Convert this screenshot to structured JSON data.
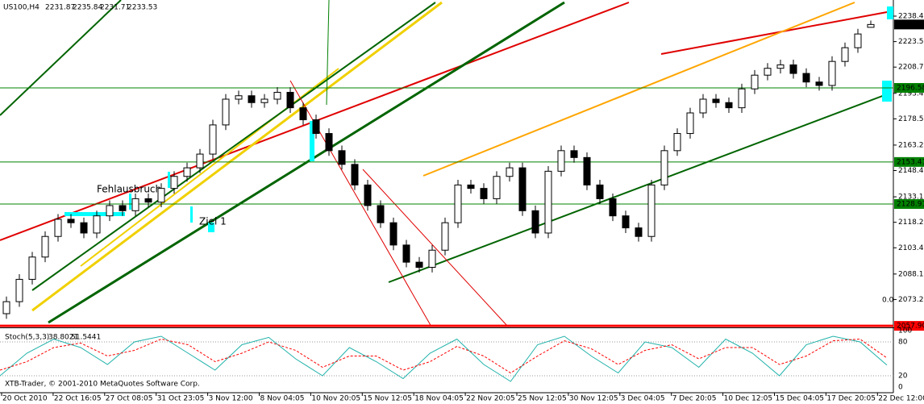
{
  "chart_data": {
    "type": "candlestick",
    "symbol": "US100,H4",
    "quote": [
      2231.87,
      2235.84,
      2231.71,
      2233.53
    ],
    "ylim": [
      2057,
      2247.8
    ],
    "yticks": [
      {
        "value": 2238.4,
        "label": "2238.40"
      },
      2223.55,
      {
        "value": 2208.7,
        "label": "2208.70"
      },
      {
        "value": 2193.4,
        "label": "2193.40"
      },
      2178.55,
      2163.25,
      {
        "value": 2148.4,
        "label": "2148.40"
      },
      {
        "value": 2133.1,
        "label": "2133.10"
      },
      2118.25,
      {
        "value": 2103.4,
        "label": "2103.40"
      },
      {
        "value": 2088.1,
        "label": "2088.10"
      },
      2073.25
    ],
    "categories": [
      "20 Oct 2010",
      "22 Oct 16:05",
      "27 Oct 08:05",
      "31 Oct 23:05",
      "3 Nov 12:00",
      "8 Nov 04:05",
      "10 Nov 20:05",
      "15 Nov 12:05",
      "18 Nov 04:05",
      "22 Nov 20:05",
      "25 Nov 12:05",
      "30 Nov 12:05",
      "3 Dec 04:05",
      "7 Dec 20:05",
      "10 Dec 12:05",
      "15 Dec 04:05",
      "17 Dec 20:05",
      "22 Dec 12:00"
    ],
    "open": [
      2065,
      2072,
      2085,
      2098,
      2110,
      2120,
      2118,
      2112,
      2122,
      2128,
      2125,
      2132,
      2130,
      2138,
      2145,
      2150,
      2158,
      2175,
      2190,
      2192,
      2188,
      2190,
      2194,
      2185,
      2178,
      2170,
      2160,
      2152,
      2140,
      2128,
      2118,
      2105,
      2095,
      2092,
      2102,
      2118,
      2140,
      2138,
      2132,
      2145,
      2150,
      2125,
      2112,
      2148,
      2160,
      2156,
      2140,
      2132,
      2122,
      2115,
      2110,
      2140,
      2160,
      2170,
      2182,
      2190,
      2188,
      2185,
      2196,
      2204,
      2208,
      2210,
      2205,
      2200,
      2198,
      2212,
      2220,
      2231.87
    ],
    "high": [
      2075,
      2088,
      2101,
      2113,
      2123,
      2123,
      2121,
      2125,
      2131,
      2131,
      2135,
      2135,
      2141,
      2148,
      2153,
      2161,
      2178,
      2193,
      2195,
      2195,
      2193,
      2197,
      2197,
      2188,
      2181,
      2173,
      2163,
      2155,
      2143,
      2131,
      2121,
      2108,
      2098,
      2105,
      2121,
      2143,
      2143,
      2141,
      2148,
      2153,
      2153,
      2128,
      2151,
      2163,
      2163,
      2159,
      2143,
      2135,
      2125,
      2118,
      2143,
      2163,
      2173,
      2185,
      2193,
      2193,
      2191,
      2199,
      2207,
      2211,
      2213,
      2213,
      2208,
      2203,
      2215,
      2223,
      2231,
      2235.84
    ],
    "low": [
      2062,
      2069,
      2082,
      2095,
      2107,
      2115,
      2109,
      2109,
      2119,
      2122,
      2122,
      2127,
      2127,
      2135,
      2142,
      2147,
      2155,
      2172,
      2187,
      2185,
      2185,
      2187,
      2182,
      2175,
      2167,
      2157,
      2149,
      2137,
      2125,
      2115,
      2102,
      2092,
      2089,
      2089,
      2099,
      2115,
      2135,
      2129,
      2129,
      2142,
      2122,
      2109,
      2109,
      2145,
      2153,
      2137,
      2129,
      2119,
      2112,
      2107,
      2107,
      2137,
      2157,
      2167,
      2179,
      2185,
      2182,
      2182,
      2193,
      2201,
      2205,
      2202,
      2197,
      2195,
      2195,
      2209,
      2217,
      2231.71
    ],
    "close": [
      2072,
      2085,
      2098,
      2110,
      2120,
      2118,
      2112,
      2122,
      2128,
      2125,
      2132,
      2130,
      2138,
      2145,
      2150,
      2158,
      2175,
      2190,
      2192,
      2188,
      2190,
      2194,
      2185,
      2178,
      2170,
      2160,
      2152,
      2140,
      2128,
      2118,
      2105,
      2095,
      2092,
      2102,
      2118,
      2140,
      2138,
      2132,
      2145,
      2150,
      2125,
      2112,
      2148,
      2160,
      2156,
      2140,
      2132,
      2122,
      2115,
      2110,
      2140,
      2160,
      2170,
      2182,
      2190,
      2188,
      2185,
      2196,
      2204,
      2208,
      2210,
      2205,
      2200,
      2198,
      2212,
      2220,
      2228,
      2233.53
    ],
    "levels": [
      {
        "value": 2196.58,
        "color": "#008000"
      },
      {
        "value": 2153.41,
        "color": "#008000"
      },
      {
        "value": 2128.91,
        "color": "#008000"
      },
      {
        "value": 2057.9,
        "label": "2057.90",
        "color": "#ff0000"
      }
    ],
    "annotations": [
      "Fehlausbruch",
      "Ziel 1",
      "0.0"
    ],
    "stochastic": {
      "name": "Stoch(5,3,3)",
      "ylim": [
        0,
        100
      ],
      "yticks": [
        0,
        20,
        80,
        100
      ],
      "series": [
        {
          "color": "#20b2aa",
          "values": [
            20,
            60,
            85,
            70,
            40,
            80,
            90,
            60,
            30,
            75,
            88,
            50,
            20,
            70,
            45,
            15,
            60,
            85,
            40,
            10,
            75,
            90,
            55,
            25,
            80,
            70,
            35,
            85,
            60,
            20,
            75,
            90,
            80,
            38.8021
          ]
        },
        {
          "color": "#ff0000",
          "values": [
            30,
            45,
            70,
            78,
            55,
            65,
            85,
            75,
            45,
            60,
            80,
            65,
            35,
            55,
            55,
            30,
            45,
            72,
            55,
            25,
            55,
            82,
            68,
            40,
            65,
            75,
            50,
            70,
            70,
            40,
            55,
            82,
            85,
            51.5441
          ]
        }
      ]
    },
    "copyright": "XTB-Trader, © 2001-2010 MetaQuotes Software Corp."
  }
}
